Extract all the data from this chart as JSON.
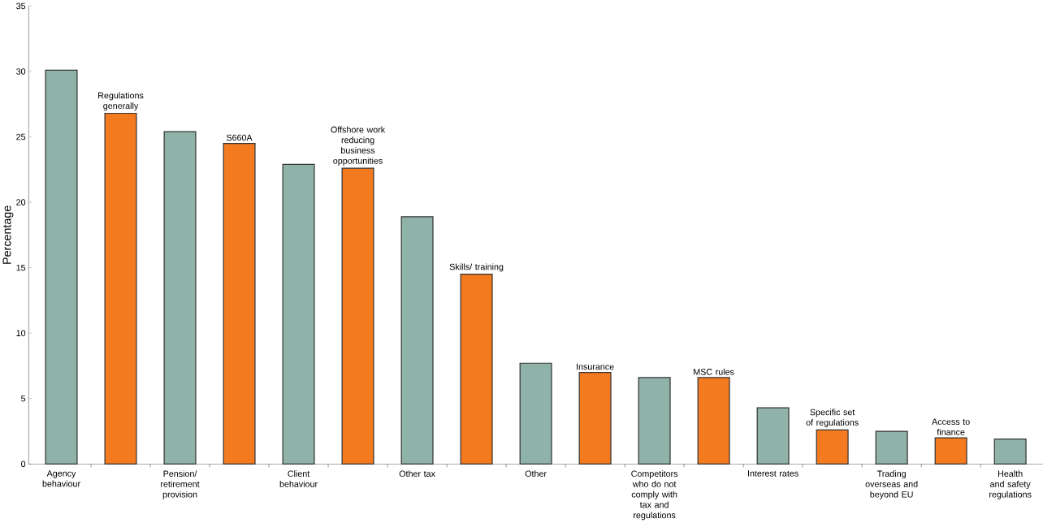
{
  "chart_data": {
    "type": "bar",
    "ylabel": "Percentage",
    "categories": [
      "Agency behaviour",
      "Regulations generally",
      "Pension/ retirement provision",
      "S660A",
      "Client behaviour",
      "Offshore work reducing business opportunities",
      "Other tax",
      "Skills/ training",
      "Other",
      "Insurance",
      "Competitors who do not comply with tax and regulations",
      "MSC rules",
      "Interest rates",
      "Specific set of regulations",
      "Trading overseas and beyond EU",
      "Access to finance",
      "Health and safety regulations"
    ],
    "values": [
      30.1,
      26.8,
      25.4,
      24.5,
      22.9,
      22.6,
      18.9,
      14.5,
      7.7,
      7.0,
      6.6,
      6.6,
      4.3,
      2.6,
      2.5,
      2.0,
      1.9
    ],
    "colors": [
      "#8fb3a9",
      "#f47a20",
      "#8fb3a9",
      "#f47a20",
      "#8fb3a9",
      "#f47a20",
      "#8fb3a9",
      "#f47a20",
      "#8fb3a9",
      "#f47a20",
      "#8fb3a9",
      "#f47a20",
      "#8fb3a9",
      "#f47a20",
      "#8fb3a9",
      "#f47a20",
      "#8fb3a9"
    ],
    "ylim": [
      0,
      35
    ],
    "yticks": [
      0,
      5,
      10,
      15,
      20,
      25,
      30,
      35
    ],
    "grid": false
  }
}
